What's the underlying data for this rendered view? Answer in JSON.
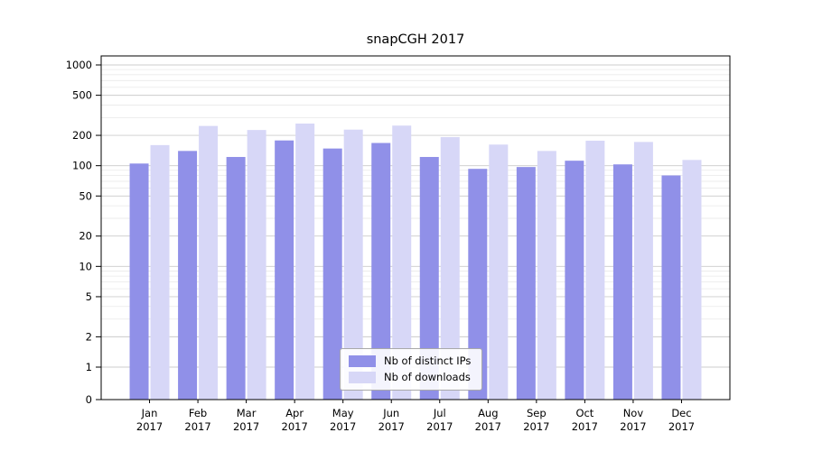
{
  "chart_data": {
    "type": "bar",
    "title": "snapCGH 2017",
    "categories": [
      "Jan",
      "Feb",
      "Mar",
      "Apr",
      "May",
      "Jun",
      "Jul",
      "Aug",
      "Sep",
      "Oct",
      "Nov",
      "Dec"
    ],
    "year": "2017",
    "series": [
      {
        "name": "Nb of distinct IPs",
        "color": "#9090e8",
        "values": [
          105,
          140,
          122,
          178,
          148,
          168,
          122,
          93,
          97,
          112,
          103,
          80
        ]
      },
      {
        "name": "Nb of downloads",
        "color": "#d7d7f7",
        "values": [
          160,
          248,
          226,
          262,
          228,
          250,
          192,
          162,
          140,
          177,
          172,
          114
        ]
      }
    ],
    "yscale": "symlog",
    "yticks": [
      0,
      1,
      2,
      5,
      10,
      20,
      50,
      100,
      200,
      500,
      1000
    ],
    "ylim": [
      0,
      1230
    ],
    "xlabel": "",
    "ylabel": "",
    "grid": true,
    "legend_position": "lower center"
  },
  "style": {
    "background": "#ffffff",
    "grid_major": "#cccccc",
    "grid_minor": "#e9e9e9",
    "spine": "#000000",
    "text": "#000000"
  }
}
